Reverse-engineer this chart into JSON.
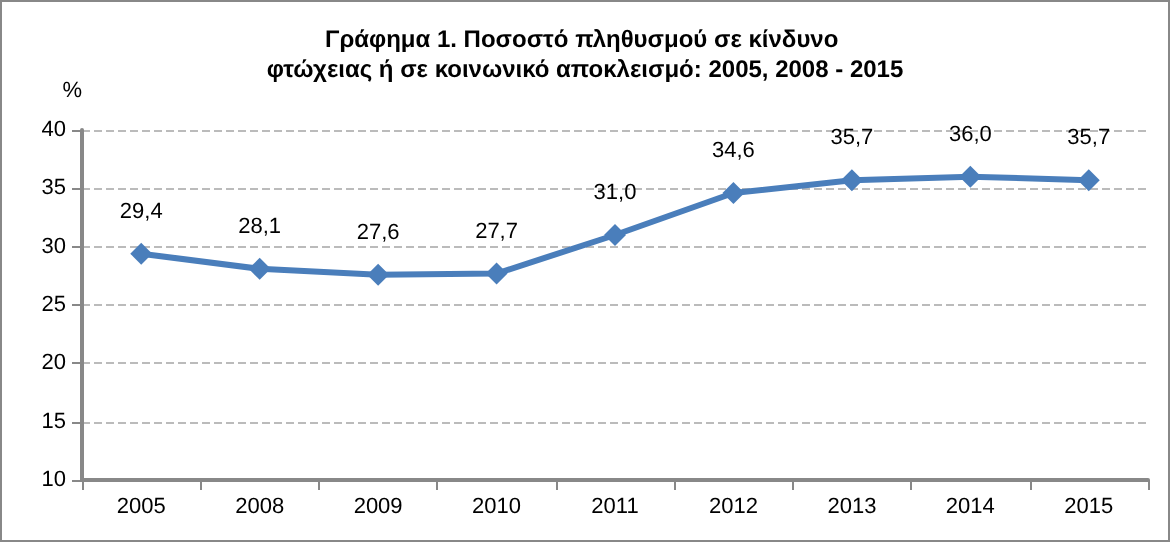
{
  "chart_data": {
    "type": "line",
    "title": "Γράφημα 1. Ποσοστό πληθυσμού σε κίνδυνο φτώχειας ή σε κοινωνικό αποκλεισμό: 2005, 2008 - 2015",
    "ylabel": "%",
    "categories": [
      "2005",
      "2008",
      "2009",
      "2010",
      "2011",
      "2012",
      "2013",
      "2014",
      "2015"
    ],
    "series": [
      {
        "color": "#4a7ebb",
        "values": [
          29.4,
          28.1,
          27.6,
          27.7,
          31.0,
          34.6,
          35.7,
          36.0,
          35.7
        ],
        "value_labels": [
          "29,4",
          "28,1",
          "27,6",
          "27,7",
          "31,0",
          "34,6",
          "35,7",
          "36,0",
          "35,7"
        ]
      }
    ],
    "ylim": [
      10,
      40
    ],
    "yticks": [
      10,
      15,
      20,
      25,
      30,
      35,
      40
    ],
    "grid": "y",
    "marker": "diamond",
    "line_style": "solid"
  }
}
